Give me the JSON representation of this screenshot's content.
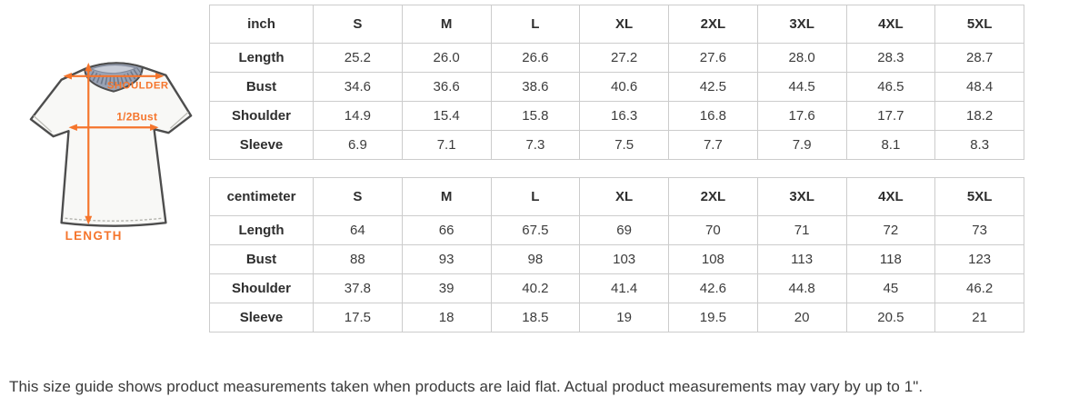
{
  "figure": {
    "labels": {
      "shoulder": "SHOULDER",
      "half_bust": "1/2Bust",
      "length": "LENGTH"
    },
    "colors": {
      "accent_orange": "#f5752c",
      "collar_gray": "#9aa3b5",
      "collar_rib_dark": "#6f7889",
      "collar_inner": "#c7ccd7",
      "shirt_fill": "#f8f8f6",
      "outline": "#4d4d4d"
    }
  },
  "tables": [
    {
      "unit_header": "inch",
      "size_headers": [
        "S",
        "M",
        "L",
        "XL",
        "2XL",
        "3XL",
        "4XL",
        "5XL"
      ],
      "rows": [
        {
          "label": "Length",
          "values": [
            "25.2",
            "26.0",
            "26.6",
            "27.2",
            "27.6",
            "28.0",
            "28.3",
            "28.7"
          ]
        },
        {
          "label": "Bust",
          "values": [
            "34.6",
            "36.6",
            "38.6",
            "40.6",
            "42.5",
            "44.5",
            "46.5",
            "48.4"
          ]
        },
        {
          "label": "Shoulder",
          "values": [
            "14.9",
            "15.4",
            "15.8",
            "16.3",
            "16.8",
            "17.6",
            "17.7",
            "18.2"
          ]
        },
        {
          "label": "Sleeve",
          "values": [
            "6.9",
            "7.1",
            "7.3",
            "7.5",
            "7.7",
            "7.9",
            "8.1",
            "8.3"
          ]
        }
      ]
    },
    {
      "unit_header": "centimeter",
      "size_headers": [
        "S",
        "M",
        "L",
        "XL",
        "2XL",
        "3XL",
        "4XL",
        "5XL"
      ],
      "rows": [
        {
          "label": "Length",
          "values": [
            "64",
            "66",
            "67.5",
            "69",
            "70",
            "71",
            "72",
            "73"
          ]
        },
        {
          "label": "Bust",
          "values": [
            "88",
            "93",
            "98",
            "103",
            "108",
            "113",
            "118",
            "123"
          ]
        },
        {
          "label": "Shoulder",
          "values": [
            "37.8",
            "39",
            "40.2",
            "41.4",
            "42.6",
            "44.8",
            "45",
            "46.2"
          ]
        },
        {
          "label": "Sleeve",
          "values": [
            "17.5",
            "18",
            "18.5",
            "19",
            "19.5",
            "20",
            "20.5",
            "21"
          ]
        }
      ]
    }
  ],
  "footer": {
    "note": "This size guide shows product measurements taken when products are laid flat. Actual product measurements may vary by up to 1\"."
  }
}
